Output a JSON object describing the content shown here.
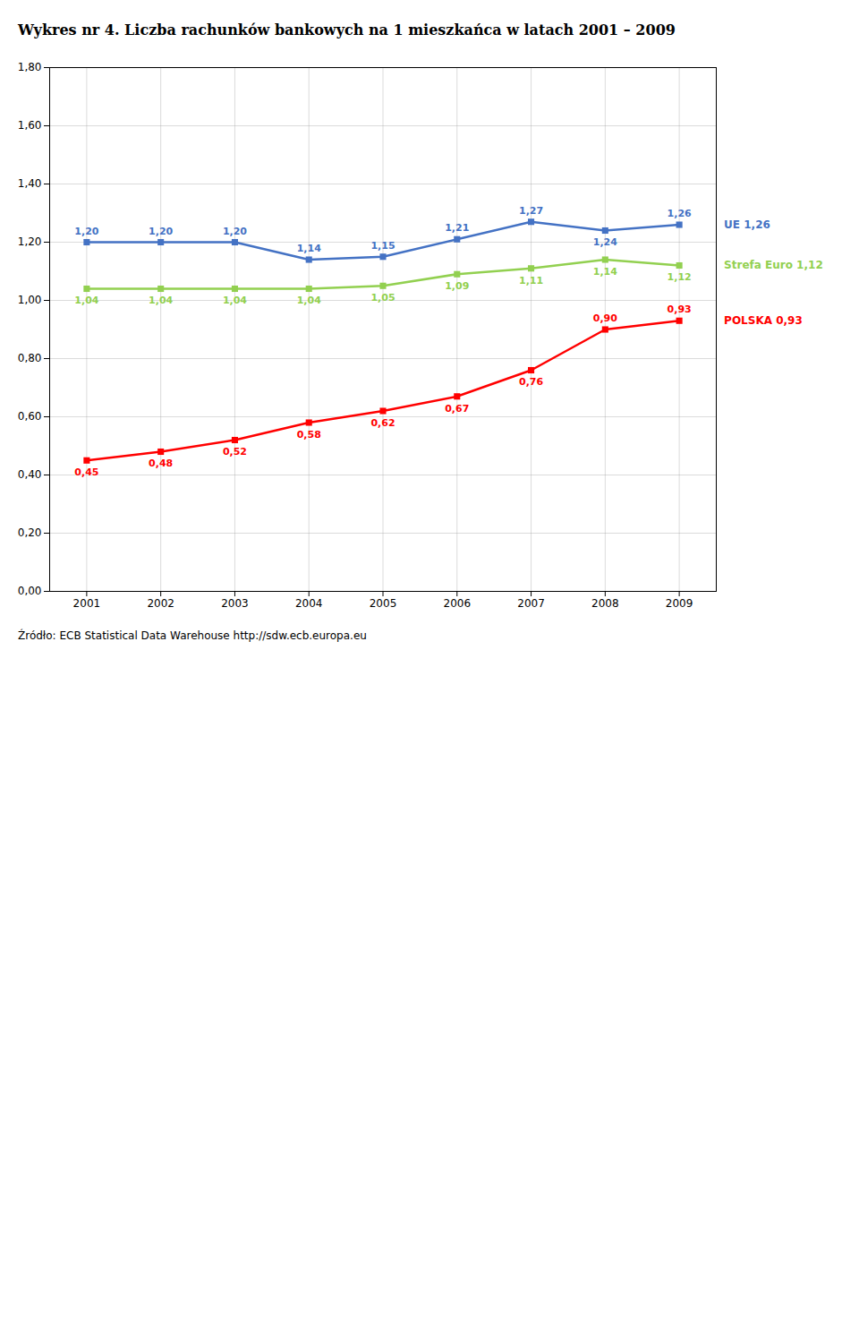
{
  "chart_data": {
    "type": "line",
    "title": "Wykres nr 4. Liczba rachunków bankowych na 1 mieszkańca w latach 2001 – 2009",
    "caption": "Źródło: ECB Statistical Data Warehouse http://sdw.ecb.europa.eu",
    "x": [
      2001,
      2002,
      2003,
      2004,
      2005,
      2006,
      2007,
      2008,
      2009
    ],
    "xlim": [
      2000.5,
      2009.5
    ],
    "xticks": [
      2001,
      2002,
      2003,
      2004,
      2005,
      2006,
      2007,
      2008,
      2009
    ],
    "ylim": [
      0,
      1.8
    ],
    "yticks": [
      {
        "value": 0,
        "label": "0,00"
      },
      {
        "value": 0.2,
        "label": "0,20"
      },
      {
        "value": 0.4,
        "label": "0,40"
      },
      {
        "value": 0.6,
        "label": "0,60"
      },
      {
        "value": 0.8,
        "label": "0,80"
      },
      {
        "value": 1.0,
        "label": "1,00"
      },
      {
        "value": 1.2,
        "label": "1,20"
      },
      {
        "value": 1.4,
        "label": "1,40"
      },
      {
        "value": 1.6,
        "label": "1,60"
      },
      {
        "value": 1.8,
        "label": "1,80"
      }
    ],
    "grid": true,
    "data_labels": true,
    "marker": "square",
    "series": [
      {
        "name": "UE 1,26",
        "color": "#4472c4",
        "values": [
          1.2,
          1.2,
          1.2,
          1.14,
          1.15,
          1.21,
          1.27,
          1.24,
          1.26
        ],
        "value_labels": [
          "1,20",
          "1,20",
          "1,20",
          "1,14",
          "1,15",
          "1,21",
          "1,27",
          "1,24",
          "1,26"
        ]
      },
      {
        "name": "Strefa Euro 1,12",
        "color": "#92d050",
        "values": [
          1.04,
          1.04,
          1.04,
          1.04,
          1.05,
          1.09,
          1.11,
          1.14,
          1.12
        ],
        "value_labels": [
          "1,04",
          "1,04",
          "1,04",
          "1,04",
          "1,05",
          "1,09",
          "1,11",
          "1,14",
          "1,12"
        ]
      },
      {
        "name": "POLSKA 0,93",
        "color": "#ff0000",
        "values": [
          0.45,
          0.48,
          0.52,
          0.58,
          0.62,
          0.67,
          0.76,
          0.9,
          0.93
        ],
        "value_labels": [
          "0,45",
          "0,48",
          "0,52",
          "0,58",
          "0,62",
          "0,67",
          "0,76",
          "0,90",
          "0,93"
        ]
      }
    ]
  }
}
